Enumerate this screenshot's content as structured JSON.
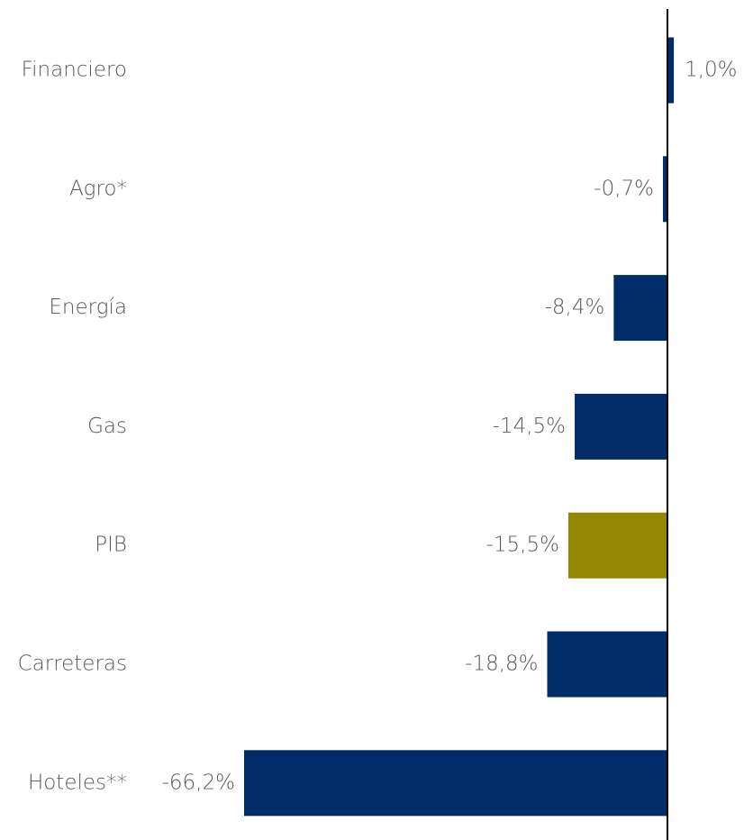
{
  "chart_data": {
    "type": "bar",
    "orientation": "horizontal",
    "categories": [
      "Financiero",
      "Agro*",
      "Energía",
      "Gas",
      "PIB",
      "Carreteras",
      "Hoteles**"
    ],
    "values": [
      1.0,
      -0.7,
      -8.4,
      -14.5,
      -15.5,
      -18.8,
      -66.2
    ],
    "value_labels": [
      "1,0%",
      "-0,7%",
      "-8,4%",
      "-14,5%",
      "-15,5%",
      "-18,8%",
      "-66,2%"
    ],
    "colors": [
      "#002d69",
      "#002d69",
      "#002d69",
      "#002d69",
      "#948600",
      "#002d69",
      "#002d69"
    ],
    "xlim": [
      -70,
      10
    ]
  }
}
